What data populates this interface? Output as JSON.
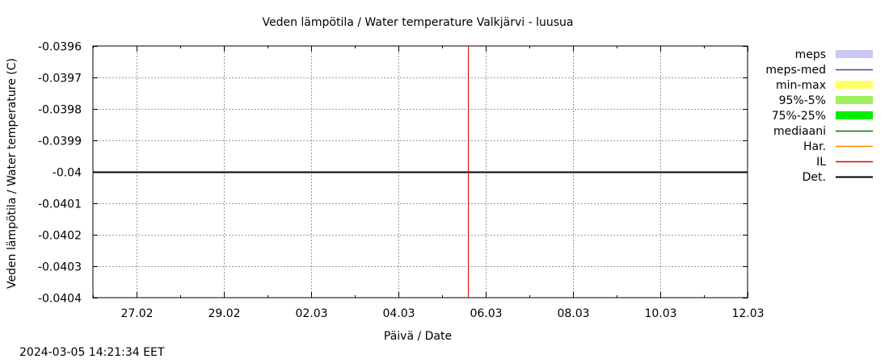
{
  "chart_data": {
    "type": "line",
    "title": "Veden lämpötila / Water temperature Valkjärvi - luusua",
    "xlabel": "Päivä / Date",
    "ylabel": "Veden lämpötila / Water temperature (C)",
    "ylim": [
      -0.0404,
      -0.0396
    ],
    "y_ticks": [
      "-0.0396",
      "-0.0397",
      "-0.0398",
      "-0.0399",
      "-0.04",
      "-0.0401",
      "-0.0402",
      "-0.0403",
      "-0.0404"
    ],
    "x_range": [
      "2024-02-26",
      "2024-03-12"
    ],
    "x_ticks": [
      {
        "date": "2024-02-27",
        "label": "27.02"
      },
      {
        "date": "2024-02-29",
        "label": "29.02"
      },
      {
        "date": "2024-03-02",
        "label": "02.03"
      },
      {
        "date": "2024-03-04",
        "label": "04.03"
      },
      {
        "date": "2024-03-06",
        "label": "06.03"
      },
      {
        "date": "2024-03-08",
        "label": "08.03"
      },
      {
        "date": "2024-03-10",
        "label": "10.03"
      },
      {
        "date": "2024-03-12",
        "label": "12.03"
      }
    ],
    "grid": true,
    "legend_position": "right",
    "legend": [
      {
        "label": "meps",
        "color": "#c8c8f5",
        "style": "band"
      },
      {
        "label": "meps-med",
        "color": "#4040c0",
        "style": "line"
      },
      {
        "label": "min-max",
        "color": "#ffff66",
        "style": "band"
      },
      {
        "label": "95%-5%",
        "color": "#a0f060",
        "style": "band"
      },
      {
        "label": "75%-25%",
        "color": "#00ee00",
        "style": "band"
      },
      {
        "label": "mediaani",
        "color": "#007700",
        "style": "line"
      },
      {
        "label": "Har.",
        "color": "#ff8800",
        "style": "line"
      },
      {
        "label": "IL",
        "color": "#dd0000",
        "style": "line"
      },
      {
        "label": "Det.",
        "color": "#000000",
        "style": "line"
      }
    ],
    "series": [
      {
        "name": "Det.",
        "color": "#000000",
        "x": [
          "2024-02-26",
          "2024-03-12"
        ],
        "values": [
          -0.04,
          -0.04
        ]
      }
    ],
    "marker_time": "2024-03-05 14:21",
    "marker_color": "#dd0000"
  },
  "footer": {
    "timestamp": "2024-03-05 14:21:34 EET"
  }
}
